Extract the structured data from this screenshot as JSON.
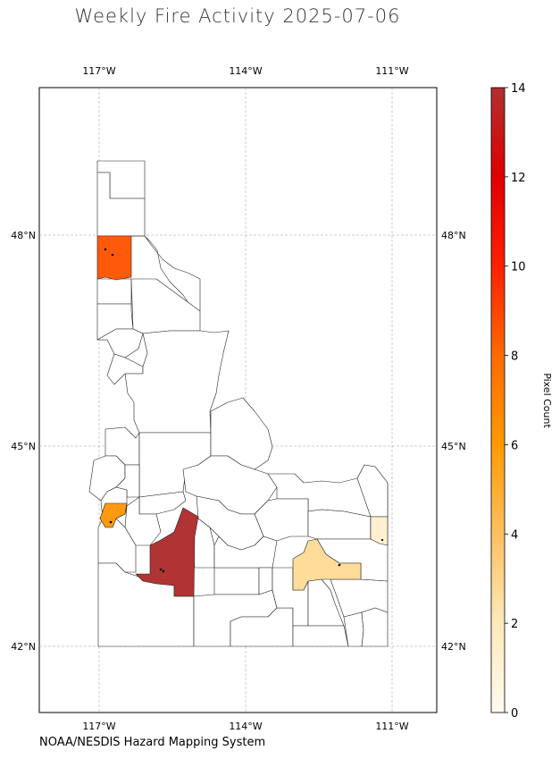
{
  "title": "Weekly Fire Activity 2025-07-06",
  "source": "NOAA/NESDIS Hazard Mapping System",
  "map": {
    "region": "Idaho",
    "lon_ticks": [
      "117°W",
      "114°W",
      "111°W"
    ],
    "lat_ticks": [
      "48°N",
      "45°N",
      "42°N"
    ],
    "grid": true,
    "county_outline_color": "#222222"
  },
  "colorbar": {
    "label": "Pixel Count",
    "min": 0,
    "max": 14,
    "ticks": [
      "0",
      "2",
      "4",
      "6",
      "8",
      "10",
      "12",
      "14"
    ],
    "stops": [
      "#fffaf0",
      "#ffe9b8",
      "#ffc060",
      "#ff9a00",
      "#ff6a00",
      "#ff2000",
      "#e00000",
      "#b03030"
    ]
  },
  "fire_counties": [
    {
      "id": "boundary-benewah-north",
      "value": 7
    },
    {
      "id": "southwest-small",
      "value": 5
    },
    {
      "id": "elmore-region",
      "value": 14
    },
    {
      "id": "bingham-region",
      "value": 2
    },
    {
      "id": "east-border",
      "value": 1
    }
  ]
}
